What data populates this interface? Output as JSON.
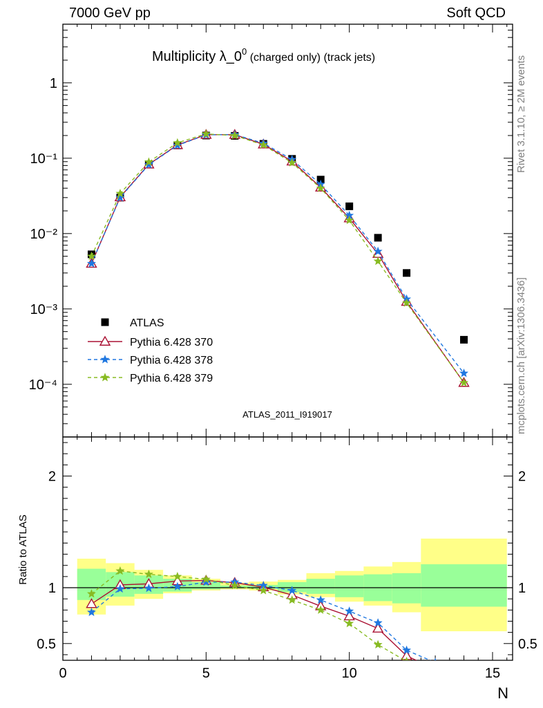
{
  "header": {
    "left": "7000 GeV pp",
    "right": "Soft QCD"
  },
  "title": {
    "main": "Multiplicity λ_0",
    "sup": "0",
    "small": " (charged only) (track jets)"
  },
  "side_labels": {
    "rivet": "Rivet 3.1.10, ≥ 2M events",
    "mcplots": "mcplots.cern.ch [arXiv:1306.3436]"
  },
  "watermark": "ATLAS_2011_I919017",
  "colors": {
    "atlas": "#000000",
    "p370": "#aa1133",
    "p378": "#1f77e0",
    "p379": "#88bb22",
    "band_yellow": "#ffff88",
    "band_green": "#99ff99"
  },
  "chart_data": [
    {
      "type": "scatter",
      "panel": "main",
      "ylog": true,
      "xlim": [
        0,
        15.7
      ],
      "ylim": [
        2e-05,
        6
      ],
      "ytick_labels": [
        "1",
        "10⁻¹",
        "10⁻²",
        "10⁻³",
        "10⁻⁴"
      ],
      "legend_position": "bottom-left",
      "legend": [
        "ATLAS",
        "Pythia 6.428 370",
        "Pythia 6.428 378",
        "Pythia 6.428 379"
      ],
      "x": [
        1,
        2,
        3,
        4,
        5,
        6,
        7,
        8,
        9,
        10,
        11,
        12,
        14
      ],
      "series": [
        {
          "name": "ATLAS",
          "style": "square",
          "values": [
            0.0053,
            0.03,
            0.083,
            0.148,
            0.2,
            0.198,
            0.155,
            0.098,
            0.052,
            0.023,
            0.0088,
            0.003,
            0.00039
          ]
        },
        {
          "name": "Pythia 6.428 370",
          "style": "triangle-solid",
          "values": [
            0.004,
            0.0305,
            0.083,
            0.15,
            0.205,
            0.205,
            0.153,
            0.091,
            0.041,
            0.016,
            0.0054,
            0.00125,
            0.000105
          ]
        },
        {
          "name": "Pythia 6.428 378",
          "style": "star-dashed",
          "values": [
            0.004,
            0.03,
            0.082,
            0.148,
            0.204,
            0.206,
            0.158,
            0.096,
            0.045,
            0.0174,
            0.0058,
            0.00135,
            0.00014
          ]
        },
        {
          "name": "Pythia 6.428 379",
          "style": "star-dashed",
          "values": [
            0.005,
            0.034,
            0.089,
            0.16,
            0.21,
            0.2,
            0.15,
            0.087,
            0.04,
            0.015,
            0.0043,
            0.0012,
            0.000105
          ]
        }
      ]
    },
    {
      "type": "line",
      "panel": "ratio",
      "ylabel": "Ratio to ATLAS",
      "xlabel": "N",
      "xlim": [
        0,
        15.7
      ],
      "ylim": [
        0.35,
        2.35
      ],
      "xticks": [
        "0",
        "5",
        "10",
        "15"
      ],
      "yticks": [
        "0.5",
        "1",
        "2"
      ],
      "x": [
        1,
        2,
        3,
        4,
        5,
        6,
        7,
        8,
        9,
        10,
        11,
        12,
        13
      ],
      "series": [
        {
          "name": "Pythia 6.428 370",
          "values": [
            0.855,
            1.025,
            1.035,
            1.06,
            1.065,
            1.045,
            1.005,
            0.935,
            0.835,
            0.745,
            0.635,
            0.39,
            0.27
          ]
        },
        {
          "name": "Pythia 6.428 378",
          "values": [
            0.78,
            0.99,
            0.995,
            1.01,
            1.05,
            1.05,
            1.02,
            0.975,
            0.89,
            0.79,
            0.685,
            0.44,
            0.33
          ]
        },
        {
          "name": "Pythia 6.428 379",
          "values": [
            0.945,
            1.15,
            1.12,
            1.1,
            1.075,
            1.02,
            0.975,
            0.89,
            0.8,
            0.68,
            0.49,
            0.34,
            0.25
          ]
        }
      ],
      "bands": {
        "bin_edges": [
          0.5,
          1.5,
          2.5,
          3.5,
          4.5,
          5.5,
          6.5,
          7.5,
          8.5,
          9.5,
          10.5,
          11.5,
          12.5,
          15.5
        ],
        "yellow_lo": [
          0.76,
          0.84,
          0.9,
          0.95,
          0.975,
          0.985,
          0.975,
          0.94,
          0.915,
          0.875,
          0.84,
          0.78,
          0.61
        ],
        "yellow_hi": [
          1.26,
          1.22,
          1.16,
          1.11,
          1.08,
          1.045,
          1.055,
          1.07,
          1.13,
          1.15,
          1.19,
          1.23,
          1.44
        ],
        "green_lo": [
          0.89,
          0.92,
          0.945,
          0.965,
          0.985,
          0.995,
          0.99,
          0.96,
          0.945,
          0.915,
          0.88,
          0.86,
          0.83
        ],
        "green_hi": [
          1.17,
          1.14,
          1.11,
          1.08,
          1.05,
          1.02,
          1.025,
          1.05,
          1.08,
          1.11,
          1.12,
          1.13,
          1.21
        ]
      }
    }
  ]
}
